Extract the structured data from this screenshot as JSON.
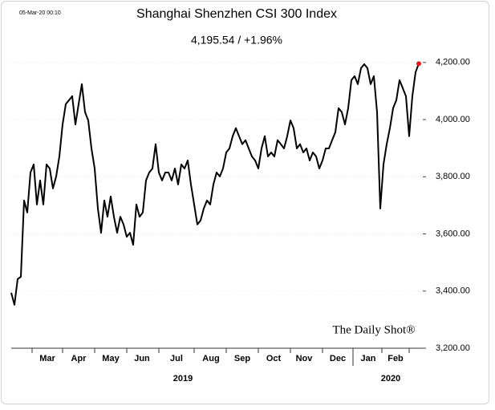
{
  "chart_data": {
    "type": "line",
    "title": "Shanghai Shenzhen CSI 300 Index",
    "subtitle": "4,195.54  /  +1.96%",
    "timestamp": "05-Mar-20 00:10",
    "watermark": "The Daily Shot®",
    "series": [
      {
        "name": "CSI 300",
        "color": "#000000",
        "last_point_color": "#e8191c",
        "values": [
          3394,
          3352,
          3442,
          3450,
          3717,
          3675,
          3815,
          3843,
          3703,
          3787,
          3703,
          3843,
          3829,
          3759,
          3801,
          3871,
          3983,
          4054,
          4068,
          4082,
          3983,
          4054,
          4124,
          4026,
          3997,
          3899,
          3829,
          3689,
          3604,
          3717,
          3660,
          3731,
          3660,
          3604,
          3660,
          3633,
          3590,
          3604,
          3562,
          3703,
          3660,
          3675,
          3787,
          3815,
          3829,
          3914,
          3815,
          3787,
          3815,
          3815,
          3787,
          3829,
          3773,
          3843,
          3829,
          3857,
          3773,
          3703,
          3633,
          3647,
          3689,
          3717,
          3703,
          3773,
          3815,
          3801,
          3829,
          3885,
          3899,
          3942,
          3970,
          3942,
          3914,
          3928,
          3899,
          3871,
          3857,
          3829,
          3899,
          3942,
          3871,
          3885,
          3871,
          3928,
          3914,
          3899,
          3942,
          3997,
          3970,
          3899,
          3914,
          3885,
          3899,
          3857,
          3885,
          3871,
          3829,
          3857,
          3899,
          3899,
          3928,
          3956,
          4040,
          4026,
          3983,
          4040,
          4138,
          4152,
          4124,
          4180,
          4194,
          4180,
          4124,
          4152,
          4026,
          3689,
          3843,
          3914,
          3970,
          4040,
          4068,
          4138,
          4110,
          4082,
          3942,
          4082,
          4166,
          4195.54
        ]
      }
    ],
    "xlim": [
      0,
      128.25
    ],
    "xticks": [
      6.5,
      16,
      26,
      36,
      46,
      57,
      67,
      77,
      87,
      97,
      106.5,
      115.5,
      124
    ],
    "month_labels": [
      {
        "value": 11.25,
        "label": "Mar"
      },
      {
        "value": 21,
        "label": "Apr"
      },
      {
        "value": 31,
        "label": "May"
      },
      {
        "value": 40.75,
        "label": "Jun"
      },
      {
        "value": 51.5,
        "label": "Jul"
      },
      {
        "value": 62.25,
        "label": "Aug"
      },
      {
        "value": 72,
        "label": "Sep"
      },
      {
        "value": 81.75,
        "label": "Oct"
      },
      {
        "value": 91.25,
        "label": "Nov"
      },
      {
        "value": 101.75,
        "label": "Dec"
      },
      {
        "value": 111.25,
        "label": "Jan"
      },
      {
        "value": 119.75,
        "label": "Feb"
      }
    ],
    "year_divider": 106.5,
    "year_labels": [
      {
        "value": 53.5,
        "label": "2019"
      },
      {
        "value": 118.25,
        "label": "2020"
      }
    ],
    "ylim": [
      3200,
      4250
    ],
    "yticks": [
      {
        "value": 3200,
        "label": "3,200.00"
      },
      {
        "value": 3400,
        "label": "3,400.00"
      },
      {
        "value": 3600,
        "label": "3,600.00"
      },
      {
        "value": 3800,
        "label": "3,800.00"
      },
      {
        "value": 4000,
        "label": "4,000.00"
      },
      {
        "value": 4200,
        "label": "4,200.00"
      }
    ],
    "grid": true
  }
}
